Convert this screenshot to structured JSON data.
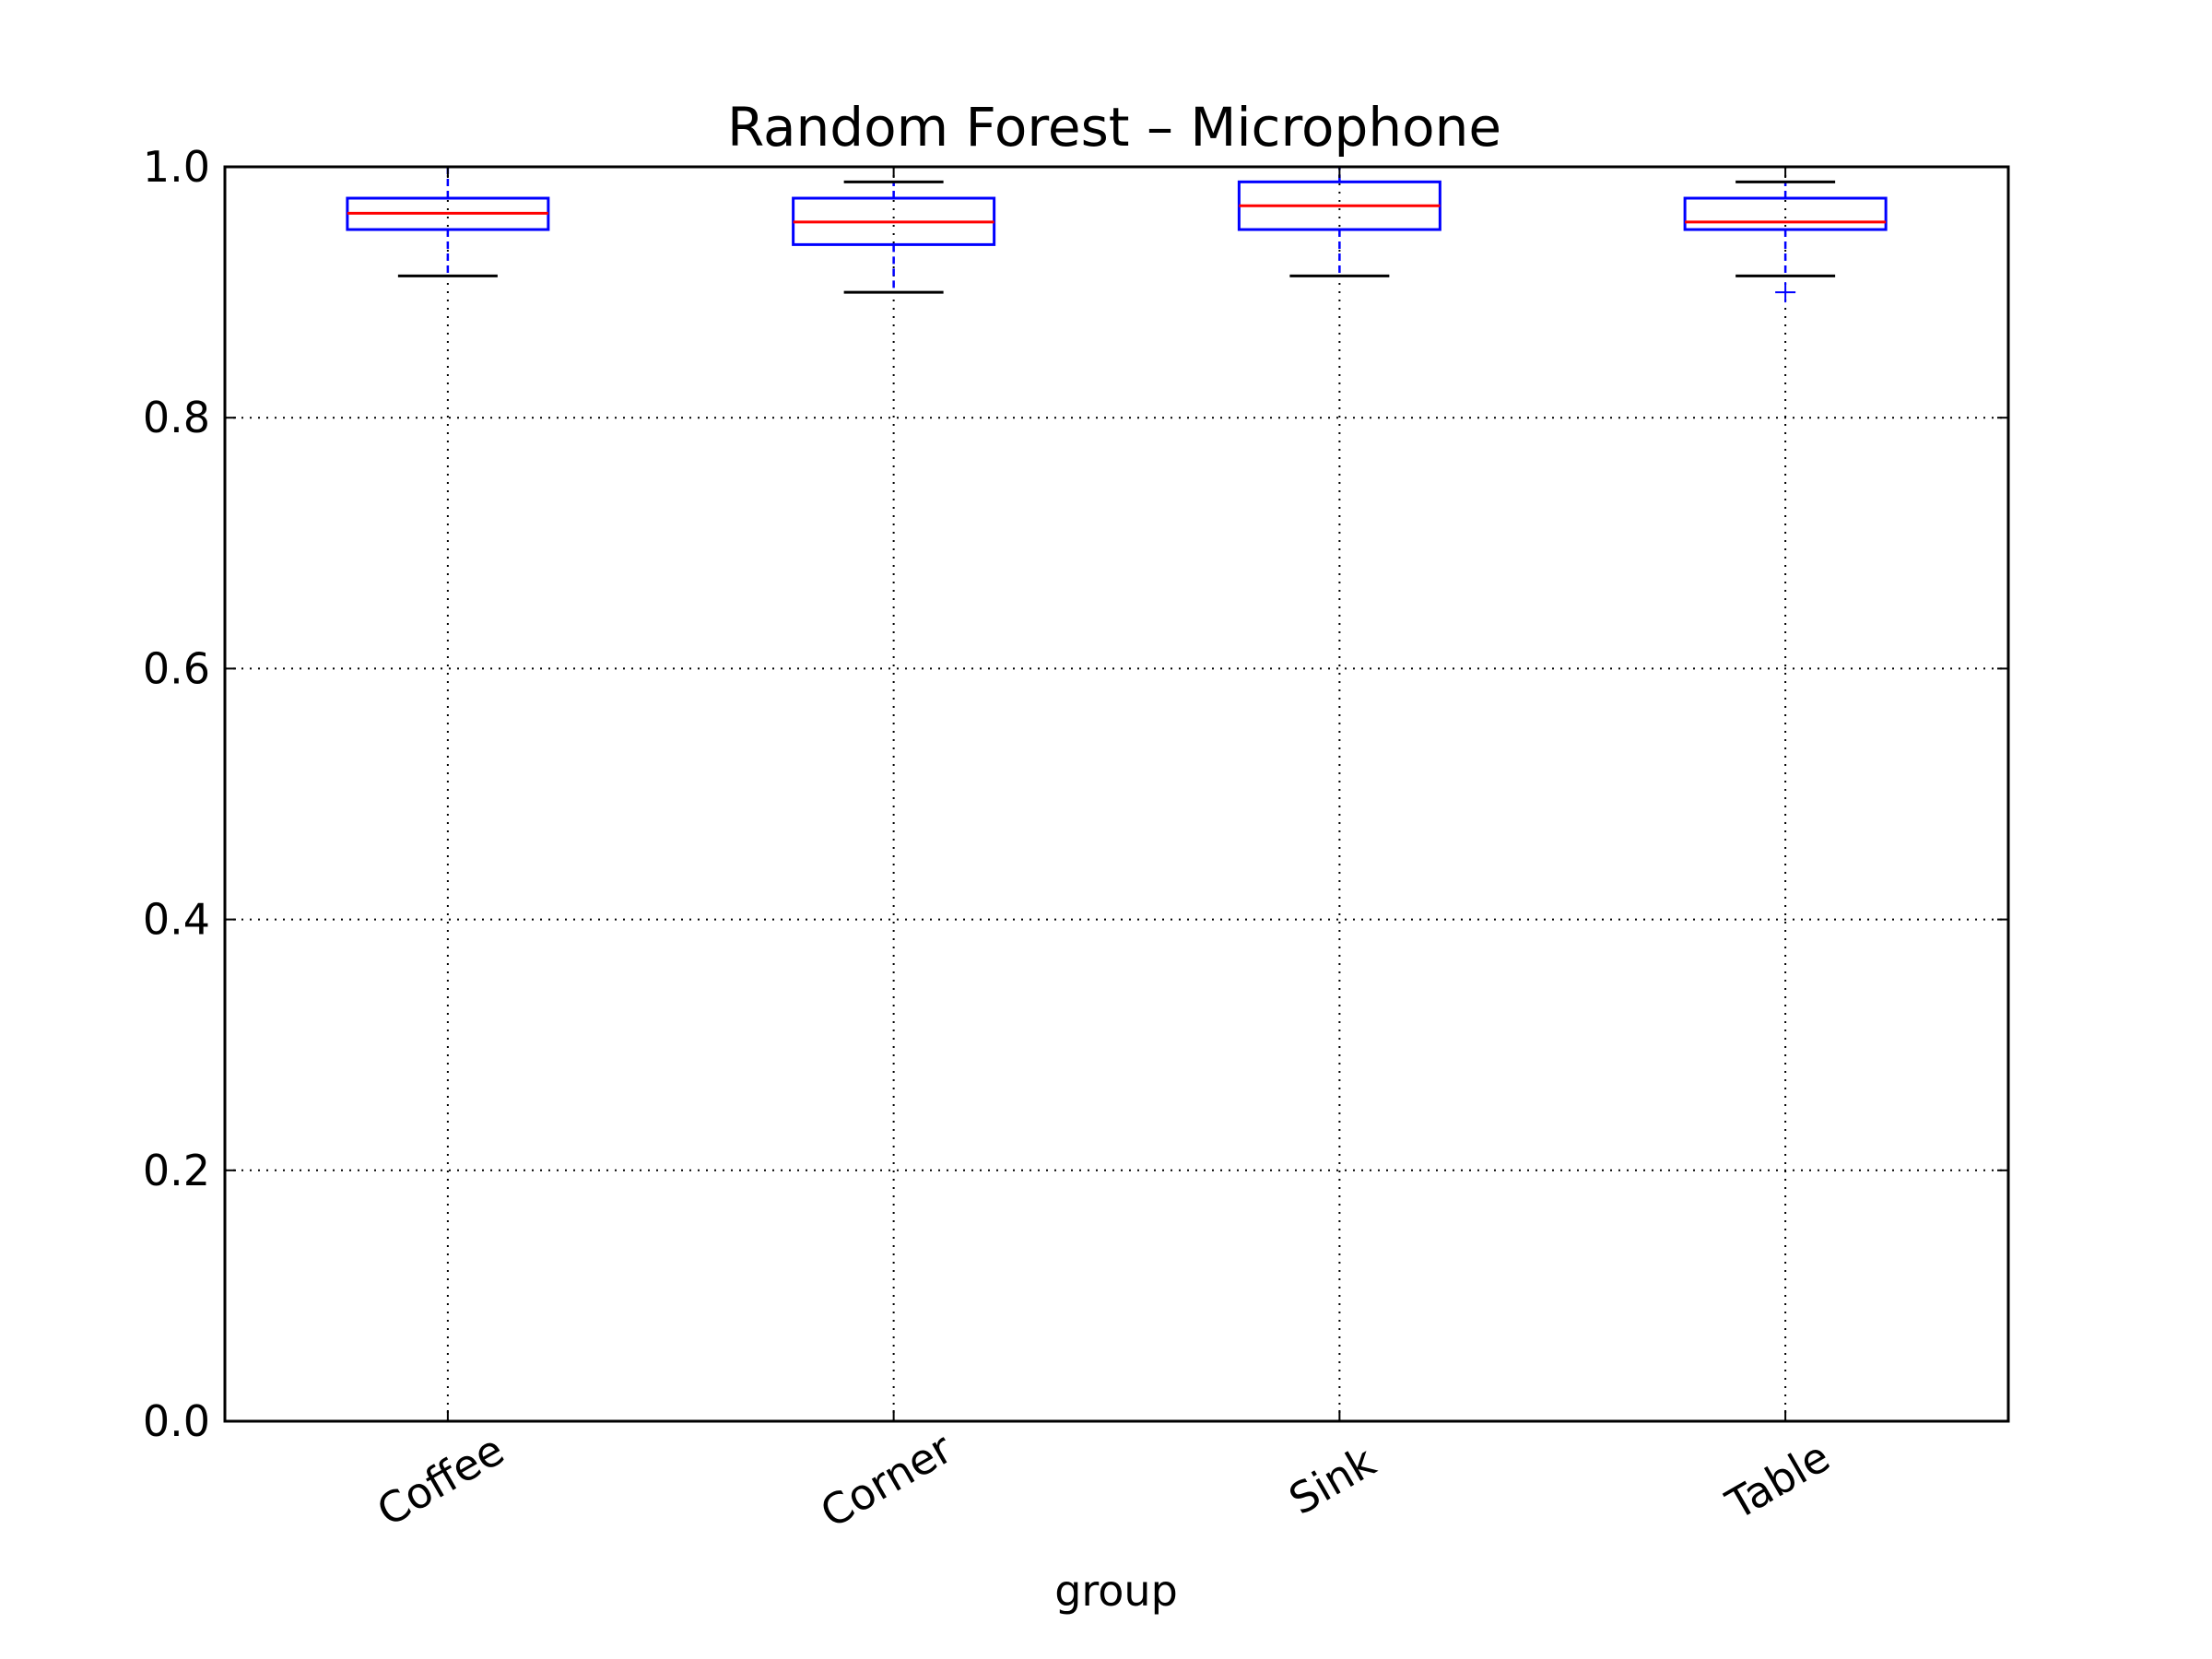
{
  "chart_data": {
    "type": "box",
    "title": "Random Forest – Microphone",
    "xlabel": "group",
    "ylabel": "",
    "ylim": [
      0.0,
      1.0
    ],
    "yticks": [
      "0.0",
      "0.2",
      "0.4",
      "0.6",
      "0.8",
      "1.0"
    ],
    "grid": true,
    "categories": [
      "Coffee",
      "Corner",
      "Sink",
      "Table"
    ],
    "boxes": [
      {
        "category": "Coffee",
        "whisker_low": 0.913,
        "q1": 0.95,
        "median": 0.963,
        "q3": 0.975,
        "whisker_high": 1.0,
        "outliers": []
      },
      {
        "category": "Corner",
        "whisker_low": 0.9,
        "q1": 0.938,
        "median": 0.956,
        "q3": 0.975,
        "whisker_high": 0.988,
        "outliers": []
      },
      {
        "category": "Sink",
        "whisker_low": 0.913,
        "q1": 0.95,
        "median": 0.969,
        "q3": 0.988,
        "whisker_high": 1.0,
        "outliers": []
      },
      {
        "category": "Table",
        "whisker_low": 0.913,
        "q1": 0.95,
        "median": 0.956,
        "q3": 0.975,
        "whisker_high": 0.988,
        "outliers": [
          0.9
        ]
      }
    ],
    "colors": {
      "box": "#0000ff",
      "median": "#ff0000",
      "cap": "#000000",
      "grid": "#000000",
      "outlier": "#0000ff"
    }
  }
}
